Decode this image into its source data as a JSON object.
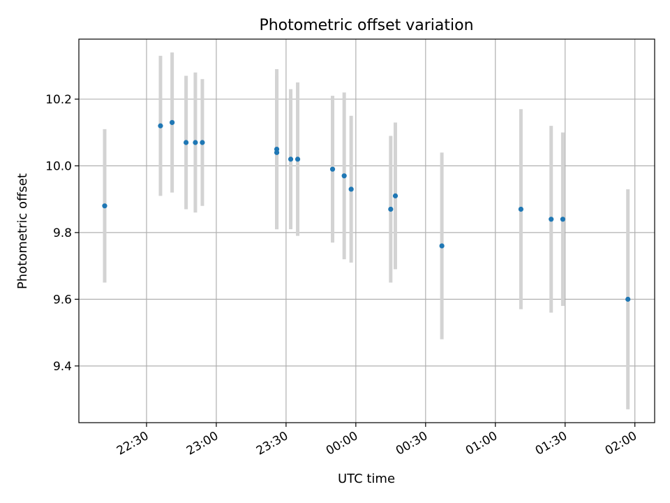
{
  "chart_data": {
    "type": "scatter",
    "title": "Photometric offset variation",
    "xlabel": "UTC time",
    "ylabel": "Photometric offset",
    "x_ticks": [
      "22:30",
      "23:00",
      "23:30",
      "00:00",
      "00:30",
      "01:00",
      "01:30",
      "02:00"
    ],
    "y_ticks": [
      "9.4",
      "9.6",
      "9.8",
      "10.0",
      "10.2"
    ],
    "ylim": [
      9.23,
      10.38
    ],
    "grid": true,
    "marker_color": "#1f77b4",
    "errorbar_color": "#d3d3d3",
    "points": [
      {
        "x": "22:12",
        "y": 9.88,
        "err": 0.23
      },
      {
        "x": "22:36",
        "y": 10.12,
        "err": 0.21
      },
      {
        "x": "22:41",
        "y": 10.13,
        "err": 0.21
      },
      {
        "x": "22:47",
        "y": 10.07,
        "err": 0.2
      },
      {
        "x": "22:51",
        "y": 10.07,
        "err": 0.21
      },
      {
        "x": "22:54",
        "y": 10.07,
        "err": 0.19
      },
      {
        "x": "23:26",
        "y": 10.04,
        "err": 0.23
      },
      {
        "x": "23:26",
        "y": 10.05,
        "err": 0.24
      },
      {
        "x": "23:32",
        "y": 10.02,
        "err": 0.21
      },
      {
        "x": "23:35",
        "y": 10.02,
        "err": 0.23
      },
      {
        "x": "23:50",
        "y": 9.99,
        "err": 0.22
      },
      {
        "x": "23:55",
        "y": 9.97,
        "err": 0.25
      },
      {
        "x": "23:58",
        "y": 9.93,
        "err": 0.22
      },
      {
        "x": "00:15",
        "y": 9.87,
        "err": 0.22
      },
      {
        "x": "00:17",
        "y": 9.91,
        "err": 0.22
      },
      {
        "x": "00:37",
        "y": 9.76,
        "err": 0.28
      },
      {
        "x": "01:11",
        "y": 9.87,
        "err": 0.3
      },
      {
        "x": "01:24",
        "y": 9.84,
        "err": 0.28
      },
      {
        "x": "01:29",
        "y": 9.84,
        "err": 0.26
      },
      {
        "x": "01:57",
        "y": 9.6,
        "err": 0.33
      }
    ]
  }
}
